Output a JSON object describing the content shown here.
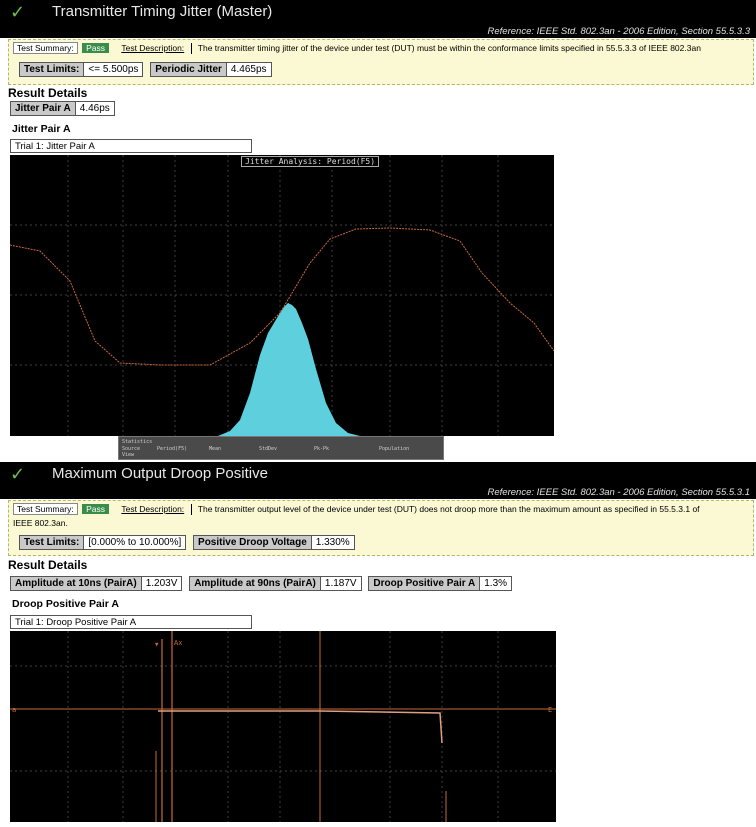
{
  "section1": {
    "title": "Transmitter Timing Jitter (Master)",
    "reference": "Reference: IEEE Std. 802.3an - 2006 Edition, Section 55.5.3.3",
    "summary_label": "Test Summary:",
    "summary_status": "Pass",
    "description_label": "Test Description:",
    "description": "The transmitter timing jitter of the device under test (DUT) must be within the conformance limits specified in 55.5.3.3 of IEEE 802.3an",
    "limits": [
      {
        "key": "Test Limits:",
        "value": "<= 5.500ps"
      },
      {
        "key": "Periodic Jitter",
        "value": "4.465ps"
      }
    ],
    "result_title": "Result Details",
    "results": [
      {
        "key": "Jitter Pair A",
        "value": "4.46ps"
      }
    ],
    "sub_title": "Jitter Pair A",
    "trial": "Trial 1: Jitter Pair A",
    "overlay": "Jitter Analysis: Period(F5)"
  },
  "section2": {
    "title": "Maximum Output Droop Positive",
    "reference": "Reference: IEEE Std. 802.3an - 2006 Edition, Section 55.5.3.1",
    "summary_label": "Test Summary:",
    "summary_status": "Pass",
    "description_label": "Test Description:",
    "description_line1": "The transmitter output level of the device under test (DUT) does not droop more than the maximum amount as specified in 55.5.3.1 of",
    "description_line2": "IEEE 802.3an.",
    "limits": [
      {
        "key": "Test Limits:",
        "value": "[0.000% to 10.000%]"
      },
      {
        "key": "Positive Droop Voltage",
        "value": "1.330%"
      }
    ],
    "result_title": "Result Details",
    "results": [
      {
        "key": "Amplitude at 10ns (PairA)",
        "value": "1.203V"
      },
      {
        "key": "Amplitude at 90ns (PairA)",
        "value": "1.187V"
      },
      {
        "key": "Droop Positive Pair A",
        "value": "1.3%"
      }
    ],
    "sub_title": "Droop Positive Pair A",
    "trial": "Trial 1: Droop Positive Pair A"
  },
  "colors": {
    "pass": "#3a8c4a",
    "check": "#6cc04a",
    "histogram": "#5ecfdc",
    "trace": "#c96a3a",
    "summary_bg": "#fbf8d4"
  }
}
